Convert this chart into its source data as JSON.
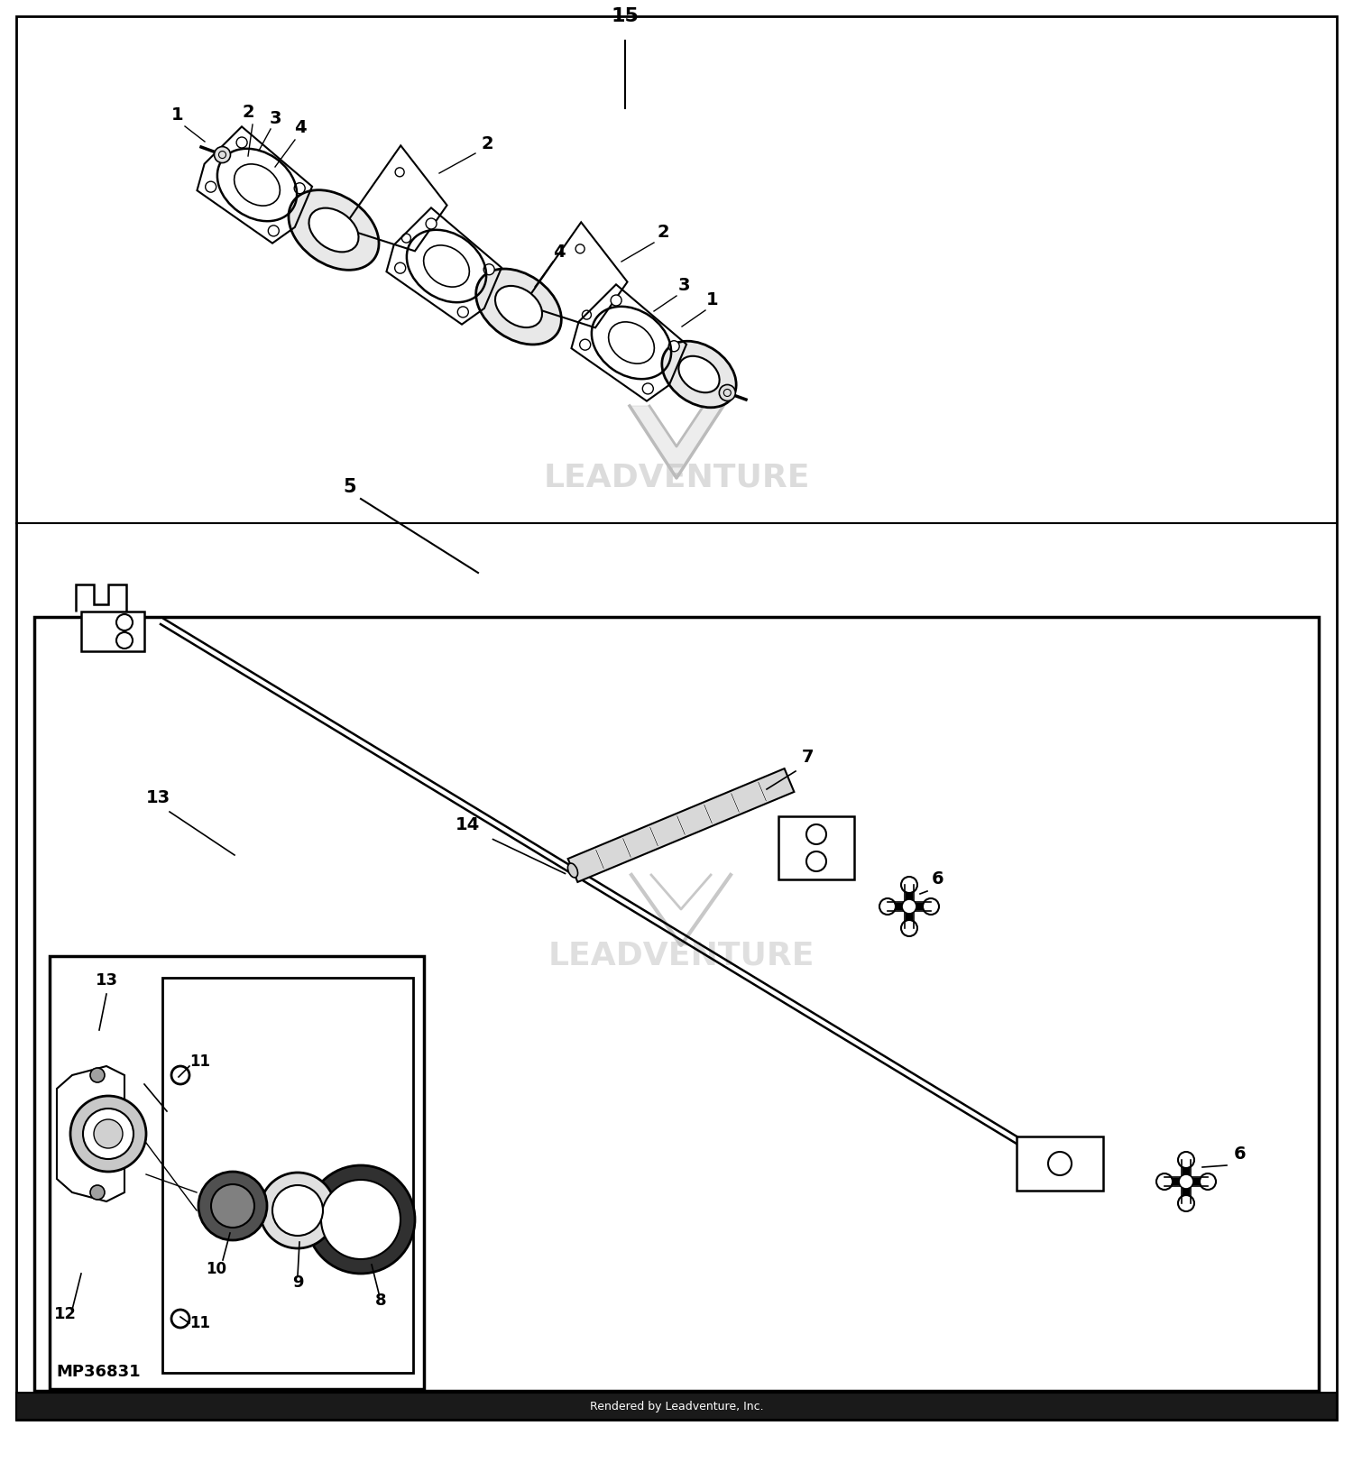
{
  "background_color": "#ffffff",
  "footer_text": "Rendered by Leadventure, Inc.",
  "footer_bg": "#1a1a1a",
  "part_label_15": "15",
  "part_label_5": "5",
  "part_label_14": "14",
  "part_label_7": "7",
  "part_label_6a": "6",
  "part_label_6b": "6",
  "part_label_13": "13",
  "part_label_mp": "MP36831",
  "watermark_text": "LEADVENTURE",
  "watermark_color": "#cccccc",
  "line_color": "#000000"
}
